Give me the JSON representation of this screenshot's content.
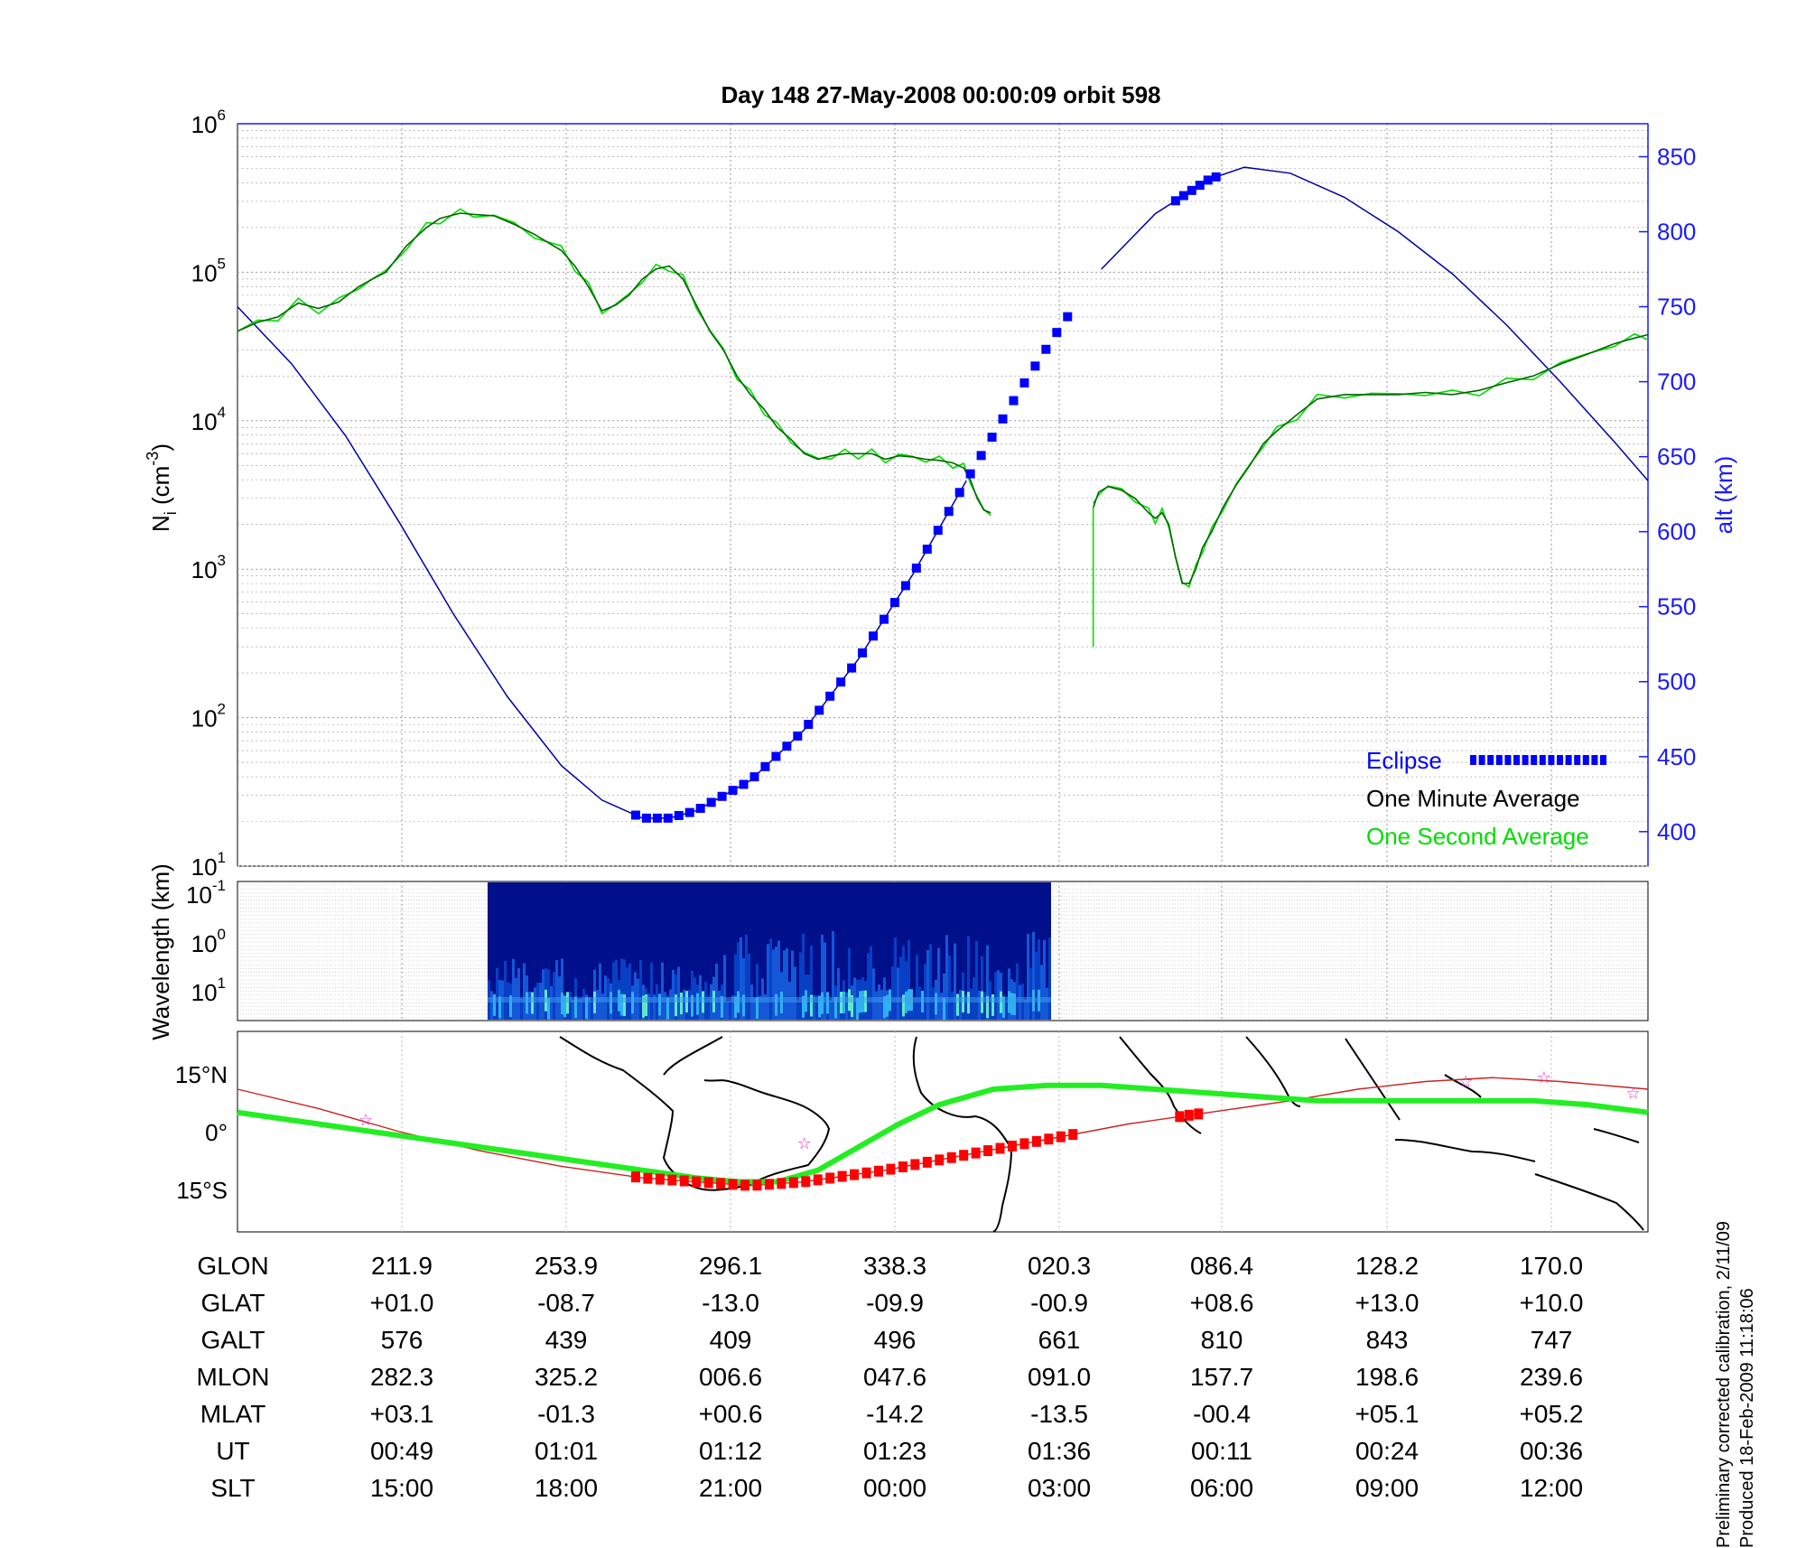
{
  "title": "Day 148  27-May-2008 00:00:09   orbit 598",
  "chart_data": [
    {
      "id": "density-panel",
      "type": "line",
      "ylabel": "N_i (cm^-3)",
      "ylabel_main": "N",
      "ylabel_sub": "i",
      "ylabel_rest": " (cm",
      "ylabel_sup": "-3",
      "ylabel_close": ")",
      "y_scale": "log",
      "ylim": [
        10,
        1000000
      ],
      "y_ticks": [
        {
          "base": "10",
          "exp": "1",
          "value": 10
        },
        {
          "base": "10",
          "exp": "2",
          "value": 100
        },
        {
          "base": "10",
          "exp": "3",
          "value": 1000
        },
        {
          "base": "10",
          "exp": "4",
          "value": 10000
        },
        {
          "base": "10",
          "exp": "5",
          "value": 100000
        },
        {
          "base": "10",
          "exp": "6",
          "value": 1000000
        }
      ],
      "y2label": "alt (km)",
      "y2lim": [
        377,
        872
      ],
      "y2_ticks": [
        "400",
        "450",
        "500",
        "550",
        "600",
        "650",
        "700",
        "750",
        "800",
        "850"
      ],
      "grid": true,
      "legend_position": "bottom-right",
      "legend": [
        {
          "label": "Eclipse",
          "color": "#0000ff"
        },
        {
          "label": "One Minute Average",
          "color": "#000000"
        },
        {
          "label": "One Second Average",
          "color": "#00dd00"
        }
      ],
      "series": [
        {
          "name": "One Minute Average",
          "color": "#006600",
          "points": [
            [
              0,
              40000
            ],
            [
              15,
              46000
            ],
            [
              30,
              50000
            ],
            [
              45,
              62000
            ],
            [
              60,
              57000
            ],
            [
              75,
              63000
            ],
            [
              90,
              80000
            ],
            [
              100,
              90000
            ],
            [
              110,
              100000
            ],
            [
              125,
              150000
            ],
            [
              140,
              200000
            ],
            [
              150,
              230000
            ],
            [
              165,
              250000
            ],
            [
              175,
              245000
            ],
            [
              190,
              240000
            ],
            [
              205,
              210000
            ],
            [
              220,
              180000
            ],
            [
              240,
              140000
            ],
            [
              250,
              110000
            ],
            [
              260,
              80000
            ],
            [
              270,
              55000
            ],
            [
              280,
              60000
            ],
            [
              290,
              70000
            ],
            [
              300,
              90000
            ],
            [
              310,
              105000
            ],
            [
              320,
              110000
            ],
            [
              330,
              90000
            ],
            [
              340,
              60000
            ],
            [
              350,
              40000
            ],
            [
              360,
              30000
            ],
            [
              370,
              20000
            ],
            [
              380,
              15000
            ],
            [
              390,
              12000
            ],
            [
              400,
              9000
            ],
            [
              410,
              7500
            ],
            [
              420,
              6000
            ],
            [
              430,
              5500
            ],
            [
              440,
              5800
            ],
            [
              450,
              6000
            ],
            [
              460,
              6000
            ],
            [
              470,
              6000
            ],
            [
              480,
              5500
            ],
            [
              490,
              5800
            ],
            [
              500,
              5700
            ],
            [
              510,
              5500
            ],
            [
              520,
              5400
            ],
            [
              530,
              5200
            ],
            [
              538,
              4800
            ],
            [
              543,
              4000
            ],
            [
              548,
              3000
            ],
            [
              553,
              2500
            ],
            [
              558,
              2400
            ]
          ]
        },
        {
          "name": "One Minute Average (post-gap)",
          "color": "#006600",
          "points": [
            [
              634,
              2600
            ],
            [
              638,
              3300
            ],
            [
              645,
              3600
            ],
            [
              655,
              3400
            ],
            [
              665,
              3000
            ],
            [
              675,
              2400
            ],
            [
              680,
              2200
            ],
            [
              685,
              2400
            ],
            [
              690,
              2000
            ],
            [
              695,
              1200
            ],
            [
              700,
              800
            ],
            [
              705,
              800
            ],
            [
              710,
              1000
            ],
            [
              715,
              1400
            ],
            [
              722,
              1800
            ],
            [
              730,
              2600
            ],
            [
              740,
              3700
            ],
            [
              750,
              5000
            ],
            [
              760,
              7000
            ],
            [
              770,
              8500
            ],
            [
              785,
              11000
            ],
            [
              800,
              14000
            ],
            [
              820,
              15000
            ],
            [
              840,
              15000
            ],
            [
              860,
              15000
            ],
            [
              880,
              15500
            ],
            [
              900,
              15000
            ],
            [
              920,
              16000
            ],
            [
              940,
              18000
            ],
            [
              960,
              20000
            ],
            [
              980,
              24000
            ],
            [
              1000,
              28000
            ],
            [
              1020,
              33000
            ],
            [
              1035,
              36000
            ],
            [
              1045,
              38000
            ]
          ]
        },
        {
          "name": "Altitude",
          "axis": "y2",
          "color": "#0000aa",
          "points": [
            [
              0,
              750
            ],
            [
              40,
              712
            ],
            [
              80,
              664
            ],
            [
              120,
              606
            ],
            [
              160,
              545
            ],
            [
              200,
              490
            ],
            [
              240,
              444
            ],
            [
              270,
              421
            ],
            [
              300,
              409
            ],
            [
              320,
              409
            ],
            [
              340,
              414
            ],
            [
              380,
              434
            ],
            [
              420,
              468
            ],
            [
              460,
              515
            ],
            [
              500,
              571
            ],
            [
              540,
              634
            ],
            [
              580,
              695
            ],
            [
              610,
              737
            ],
            [
              640,
              775
            ],
            [
              680,
              812
            ],
            [
              720,
              835
            ],
            [
              746,
              843
            ],
            [
              780,
              839
            ],
            [
              820,
              823
            ],
            [
              860,
              800
            ],
            [
              900,
              772
            ],
            [
              940,
              738
            ],
            [
              980,
              700
            ],
            [
              1020,
              660
            ],
            [
              1045,
              634
            ]
          ]
        }
      ]
    },
    {
      "id": "spectrogram-panel",
      "type": "heatmap",
      "ylabel": "Wavelength (km)",
      "y_ticks": [
        {
          "base": "10",
          "exp": "-1"
        },
        {
          "base": "10",
          "exp": "0"
        },
        {
          "base": "10",
          "exp": "1"
        }
      ]
    },
    {
      "id": "map-panel",
      "type": "line",
      "y_ticks": [
        "15°N",
        "0°",
        "15°S"
      ],
      "ylim": [
        -26,
        26
      ],
      "series": [
        {
          "name": "ground track",
          "color": "#22ee22",
          "points": [
            [
              0,
              5
            ],
            [
              60,
              2
            ],
            [
              120,
              -1
            ],
            [
              180,
              -4
            ],
            [
              240,
              -7
            ],
            [
              300,
              -10
            ],
            [
              340,
              -12
            ],
            [
              370,
              -13
            ],
            [
              400,
              -13
            ],
            [
              430,
              -10
            ],
            [
              460,
              -4
            ],
            [
              490,
              2
            ],
            [
              520,
              7
            ],
            [
              560,
              11
            ],
            [
              600,
              12
            ],
            [
              640,
              12
            ],
            [
              680,
              11
            ],
            [
              720,
              10
            ],
            [
              760,
              9
            ],
            [
              800,
              8
            ],
            [
              840,
              8
            ],
            [
              880,
              8
            ],
            [
              920,
              8
            ],
            [
              960,
              8
            ],
            [
              1000,
              7
            ],
            [
              1045,
              5
            ]
          ]
        },
        {
          "name": "magnetic equator",
          "color": "#cc2222",
          "points": [
            [
              0,
              11
            ],
            [
              60,
              6
            ],
            [
              120,
              0
            ],
            [
              180,
              -5
            ],
            [
              240,
              -9
            ],
            [
              300,
              -12
            ],
            [
              340,
              -13
            ],
            [
              380,
              -14
            ],
            [
              420,
              -13
            ],
            [
              480,
              -10
            ],
            [
              540,
              -6
            ],
            [
              600,
              -2
            ],
            [
              660,
              2
            ],
            [
              720,
              5
            ],
            [
              780,
              8
            ],
            [
              830,
              11
            ],
            [
              880,
              13
            ],
            [
              930,
              14
            ],
            [
              980,
              13
            ],
            [
              1045,
              11
            ]
          ]
        }
      ]
    }
  ],
  "table": {
    "row_labels": [
      "GLON",
      "GLAT",
      "GALT",
      "MLON",
      "MLAT",
      "UT",
      "SLT"
    ],
    "columns": [
      {
        "GLON": "211.9",
        "GLAT": "+01.0",
        "GALT": "576",
        "MLON": "282.3",
        "MLAT": "+03.1",
        "UT": "00:49",
        "SLT": "15:00"
      },
      {
        "GLON": "253.9",
        "GLAT": "-08.7",
        "GALT": "439",
        "MLON": "325.2",
        "MLAT": "-01.3",
        "UT": "01:01",
        "SLT": "18:00"
      },
      {
        "GLON": "296.1",
        "GLAT": "-13.0",
        "GALT": "409",
        "MLON": "006.6",
        "MLAT": "+00.6",
        "UT": "01:12",
        "SLT": "21:00"
      },
      {
        "GLON": "338.3",
        "GLAT": "-09.9",
        "GALT": "496",
        "MLON": "047.6",
        "MLAT": "-14.2",
        "UT": "01:23",
        "SLT": "00:00"
      },
      {
        "GLON": "020.3",
        "GLAT": "-00.9",
        "GALT": "661",
        "MLON": "091.0",
        "MLAT": "-13.5",
        "UT": "01:36",
        "SLT": "03:00"
      },
      {
        "GLON": "086.4",
        "GLAT": "+08.6",
        "GALT": "810",
        "MLON": "157.7",
        "MLAT": "-00.4",
        "UT": "00:11",
        "SLT": "06:00"
      },
      {
        "GLON": "128.2",
        "GLAT": "+13.0",
        "GALT": "843",
        "MLON": "198.6",
        "MLAT": "+05.1",
        "UT": "00:24",
        "SLT": "09:00"
      },
      {
        "GLON": "170.0",
        "GLAT": "+10.0",
        "GALT": "747",
        "MLON": "239.6",
        "MLAT": "+05.2",
        "UT": "00:36",
        "SLT": "12:00"
      }
    ]
  },
  "footer": {
    "line1": "Preliminary corrected calibration, 2/11/09",
    "line2": "Produced 18-Feb-2009 11:18:06"
  },
  "colors": {
    "axis_right": "#1a1aff",
    "eclipse": "#0000ff",
    "eclipse_map": "#ff0000",
    "minute_avg": "#006600",
    "second_avg": "#00dd00",
    "altitude": "#0000aa",
    "track": "#22ee22",
    "magnetic_equator": "#cc2222"
  }
}
